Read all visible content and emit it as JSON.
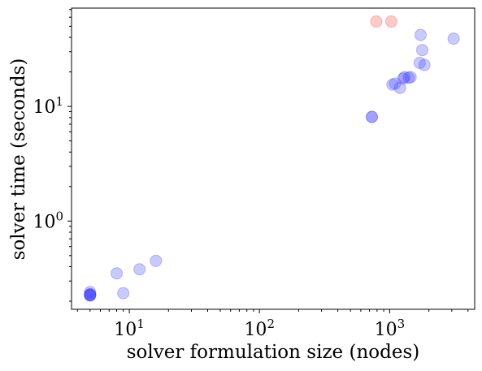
{
  "chart_data": {
    "type": "scatter",
    "title": "",
    "xlabel": "solver formulation size (nodes)",
    "ylabel": "solver time (seconds)",
    "xscale": "log",
    "yscale": "log",
    "xlim": [
      3.6,
      4500
    ],
    "ylim": [
      0.17,
      72
    ],
    "grid": false,
    "legend": "none",
    "x_ticks": [
      {
        "base": "10",
        "exp": "1",
        "value": 10
      },
      {
        "base": "10",
        "exp": "2",
        "value": 100
      },
      {
        "base": "10",
        "exp": "3",
        "value": 1000
      }
    ],
    "y_ticks": [
      {
        "base": "10",
        "exp": "0",
        "value": 1
      },
      {
        "base": "10",
        "exp": "1",
        "value": 10
      }
    ],
    "series": [
      {
        "color": "#4040ff",
        "opacity": 0.28,
        "points": [
          {
            "x": 5,
            "y": 0.225
          },
          {
            "x": 5,
            "y": 0.23
          },
          {
            "x": 5,
            "y": 0.225
          },
          {
            "x": 5,
            "y": 0.23
          },
          {
            "x": 5,
            "y": 0.225
          },
          {
            "x": 5,
            "y": 0.24
          },
          {
            "x": 8,
            "y": 0.35
          },
          {
            "x": 9,
            "y": 0.235
          },
          {
            "x": 12,
            "y": 0.38
          },
          {
            "x": 16,
            "y": 0.45
          },
          {
            "x": 730,
            "y": 8.1
          },
          {
            "x": 730,
            "y": 8.1
          },
          {
            "x": 1050,
            "y": 15.5
          },
          {
            "x": 1100,
            "y": 15.8
          },
          {
            "x": 1200,
            "y": 14.5
          },
          {
            "x": 1270,
            "y": 17.5
          },
          {
            "x": 1300,
            "y": 18.0
          },
          {
            "x": 1400,
            "y": 17.8
          },
          {
            "x": 1450,
            "y": 18.0
          },
          {
            "x": 1700,
            "y": 24.0
          },
          {
            "x": 1850,
            "y": 23.0
          },
          {
            "x": 1780,
            "y": 31.0
          },
          {
            "x": 1730,
            "y": 42.0
          },
          {
            "x": 3100,
            "y": 39.0
          }
        ]
      },
      {
        "color": "#ff4040",
        "opacity": 0.28,
        "points": [
          {
            "x": 790,
            "y": 55.0
          },
          {
            "x": 1030,
            "y": 55.0
          }
        ]
      }
    ]
  }
}
